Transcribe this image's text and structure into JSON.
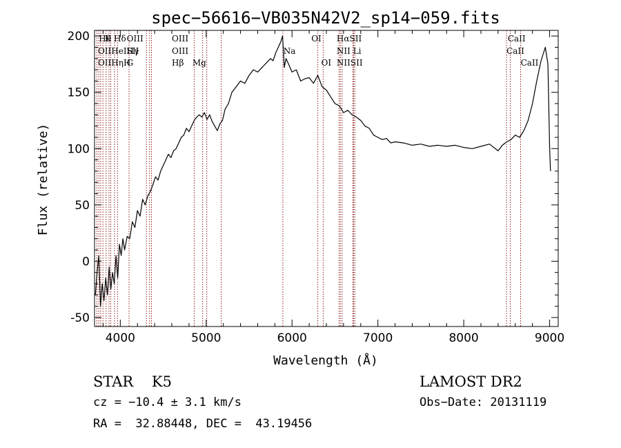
{
  "chart_data": {
    "type": "line",
    "title": "spec−56616−VB035N42V2_sp14−059.fits",
    "xlabel": "Wavelength (Å)",
    "ylabel": "Flux (relative)",
    "xlim": [
      3700,
      9100
    ],
    "ylim": [
      -58,
      205
    ],
    "xticks": [
      4000,
      5000,
      6000,
      7000,
      8000,
      9000
    ],
    "yticks": [
      -50,
      0,
      50,
      100,
      150,
      200
    ],
    "grid": false,
    "series": [
      {
        "x": [
          3710,
          3730,
          3750,
          3770,
          3790,
          3810,
          3830,
          3850,
          3870,
          3890,
          3910,
          3930,
          3950,
          3970,
          3990,
          4010,
          4030,
          4050,
          4080,
          4110,
          4140,
          4170,
          4200,
          4230,
          4260,
          4290,
          4320,
          4350,
          4380,
          4410,
          4440,
          4470,
          4500,
          4530,
          4560,
          4590,
          4620,
          4650,
          4680,
          4710,
          4740,
          4770,
          4800,
          4830,
          4860,
          4890,
          4920,
          4950,
          4980,
          5010,
          5040,
          5070,
          5100,
          5130,
          5160,
          5190,
          5220,
          5260,
          5300,
          5350,
          5400,
          5450,
          5500,
          5550,
          5600,
          5650,
          5700,
          5750,
          5780,
          5810,
          5840,
          5870,
          5890,
          5910,
          5930,
          5960,
          6000,
          6050,
          6100,
          6150,
          6200,
          6250,
          6300,
          6350,
          6400,
          6450,
          6500,
          6550,
          6600,
          6650,
          6700,
          6750,
          6800,
          6850,
          6900,
          6950,
          7000,
          7050,
          7100,
          7150,
          7200,
          7300,
          7400,
          7500,
          7600,
          7700,
          7800,
          7900,
          8000,
          8100,
          8200,
          8300,
          8400,
          8450,
          8500,
          8550,
          8600,
          8650,
          8700,
          8750,
          8800,
          8850,
          8900,
          8950,
          8980,
          9000,
          9010
        ],
        "y": [
          -30,
          -10,
          5,
          -40,
          -20,
          -35,
          -15,
          -30,
          -5,
          -25,
          -10,
          -20,
          5,
          -15,
          15,
          5,
          20,
          10,
          22,
          20,
          35,
          30,
          45,
          40,
          55,
          50,
          58,
          62,
          68,
          75,
          72,
          80,
          85,
          90,
          95,
          92,
          98,
          100,
          105,
          110,
          112,
          118,
          115,
          120,
          125,
          128,
          130,
          128,
          132,
          126,
          130,
          124,
          120,
          116,
          122,
          125,
          135,
          140,
          150,
          155,
          160,
          158,
          165,
          170,
          168,
          172,
          176,
          180,
          178,
          185,
          190,
          195,
          200,
          172,
          180,
          175,
          168,
          170,
          160,
          162,
          163,
          158,
          165,
          155,
          152,
          146,
          140,
          138,
          132,
          134,
          130,
          128,
          125,
          120,
          118,
          112,
          110,
          108,
          109,
          105,
          106,
          105,
          103,
          104,
          102,
          103,
          102,
          103,
          101,
          100,
          102,
          104,
          98,
          103,
          106,
          108,
          112,
          110,
          116,
          125,
          140,
          160,
          178,
          190,
          175,
          100,
          80
        ]
      }
    ],
    "line_labels_top": [
      {
        "w": 3750,
        "t": "Hθ"
      },
      {
        "w": 3820,
        "t": "K"
      },
      {
        "w": 3925,
        "t": "Hδ"
      },
      {
        "w": 4075,
        "t": "OIII"
      },
      {
        "w": 4600,
        "t": "OIII"
      },
      {
        "w": 6225,
        "t": "OI"
      },
      {
        "w": 6520,
        "t": "HαSII"
      },
      {
        "w": 8512,
        "t": "CaII"
      }
    ],
    "line_labels_mid": [
      {
        "w": 3740,
        "t": "OIIHeISII"
      },
      {
        "w": 4075,
        "t": "Hγ"
      },
      {
        "w": 4600,
        "t": "OIII"
      },
      {
        "w": 5900,
        "t": "Na"
      },
      {
        "w": 6520,
        "t": "NII Li"
      },
      {
        "w": 8498,
        "t": "CaII"
      }
    ],
    "line_labels_low": [
      {
        "w": 3740,
        "t": "OIIHηH"
      },
      {
        "w": 4075,
        "t": "G"
      },
      {
        "w": 4600,
        "t": "Hβ"
      },
      {
        "w": 4840,
        "t": "Mg"
      },
      {
        "w": 6340,
        "t": "OI"
      },
      {
        "w": 6520,
        "t": "NIISII"
      },
      {
        "w": 8663,
        "t": "CaII"
      }
    ],
    "line_markers": [
      3727,
      3750,
      3771,
      3798,
      3835,
      3869,
      3889,
      3933,
      3968,
      4102,
      4304,
      4341,
      4363,
      4861,
      4959,
      5007,
      5175,
      5893,
      6300,
      6363,
      6548,
      6563,
      6583,
      6708,
      6717,
      6731,
      8498,
      8542,
      8662
    ]
  },
  "footer": {
    "object": "STAR    K5",
    "survey": "LAMOST DR2",
    "cz": "cz = −10.4 ± 3.1 km/s",
    "obsdate": "Obs−Date: 20131119",
    "radec": "RA =  32.88448, DEC =  43.19456"
  },
  "colors": {
    "marker_line": "#8b1a1a",
    "spectrum": "#000000"
  }
}
